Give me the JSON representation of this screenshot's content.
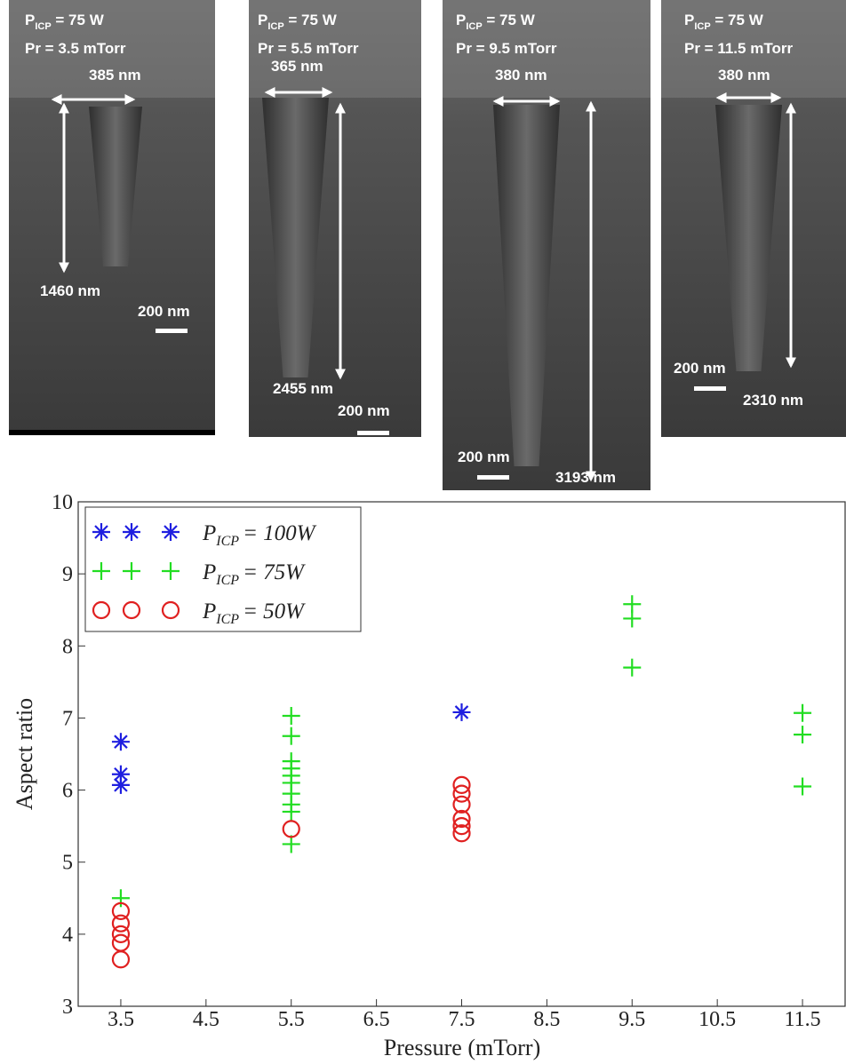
{
  "panels": [
    {
      "power": {
        "symbol": "P",
        "subscript": "ICP",
        "value": " = 75 W"
      },
      "pressure": "Pr = 3.5 mTorr",
      "width": "385 nm",
      "depth": "1460 nm",
      "scale": "200 nm"
    },
    {
      "power": {
        "symbol": "P",
        "subscript": "ICP",
        "value": " = 75 W"
      },
      "pressure": "Pr = 5.5 mTorr",
      "width": "365 nm",
      "depth": "2455 nm",
      "scale": "200 nm"
    },
    {
      "power": {
        "symbol": "P",
        "subscript": "ICP",
        "value": " = 75 W"
      },
      "pressure": "Pr = 9.5 mTorr",
      "width": "380 nm",
      "depth": "3193 nm",
      "scale": "200 nm"
    },
    {
      "power": {
        "symbol": "P",
        "subscript": "ICP",
        "value": " = 75 W"
      },
      "pressure": "Pr = 11.5 mTorr",
      "width": "380 nm",
      "depth": "2310 nm",
      "scale": "200 nm"
    }
  ],
  "chart_data": {
    "type": "scatter",
    "x_label": "Pressure (mTorr)",
    "y_label": "Aspect ratio",
    "legend_symbol": "P",
    "legend_subscript": "ICP",
    "legend": "upper left",
    "xlim": [
      3,
      12
    ],
    "xticks": [
      3.5,
      4.5,
      5.5,
      6.5,
      7.5,
      8.5,
      9.5,
      10.5,
      11.5
    ],
    "ylim": [
      3,
      10
    ],
    "yticks": [
      3,
      4,
      5,
      6,
      7,
      8,
      9,
      10
    ],
    "series": [
      {
        "name": "= 100W",
        "color": "#1f1fe0",
        "marker": "asterisk",
        "x": [
          3.5,
          3.5,
          3.5,
          7.5
        ],
        "y": [
          6.67,
          6.22,
          6.07,
          7.08
        ]
      },
      {
        "name": "= 75W",
        "color": "#22dd22",
        "marker": "plus",
        "x": [
          3.5,
          5.5,
          5.5,
          5.5,
          5.5,
          5.5,
          5.5,
          5.5,
          5.5,
          5.5,
          5.5,
          9.5,
          9.5,
          9.5,
          11.5,
          11.5,
          11.5
        ],
        "y": [
          4.5,
          7.03,
          6.75,
          6.4,
          6.3,
          6.2,
          6.1,
          5.95,
          5.8,
          5.7,
          5.25,
          8.58,
          8.38,
          7.7,
          7.07,
          6.77,
          6.05
        ]
      },
      {
        "name": "= 50W",
        "color": "#e02020",
        "marker": "circle",
        "x": [
          3.5,
          3.5,
          3.5,
          3.5,
          3.5,
          5.5,
          7.5,
          7.5,
          7.5,
          7.5,
          7.5,
          7.5
        ],
        "y": [
          4.32,
          4.15,
          4.0,
          3.88,
          3.65,
          5.46,
          6.07,
          5.95,
          5.8,
          5.6,
          5.5,
          5.4
        ]
      }
    ]
  }
}
